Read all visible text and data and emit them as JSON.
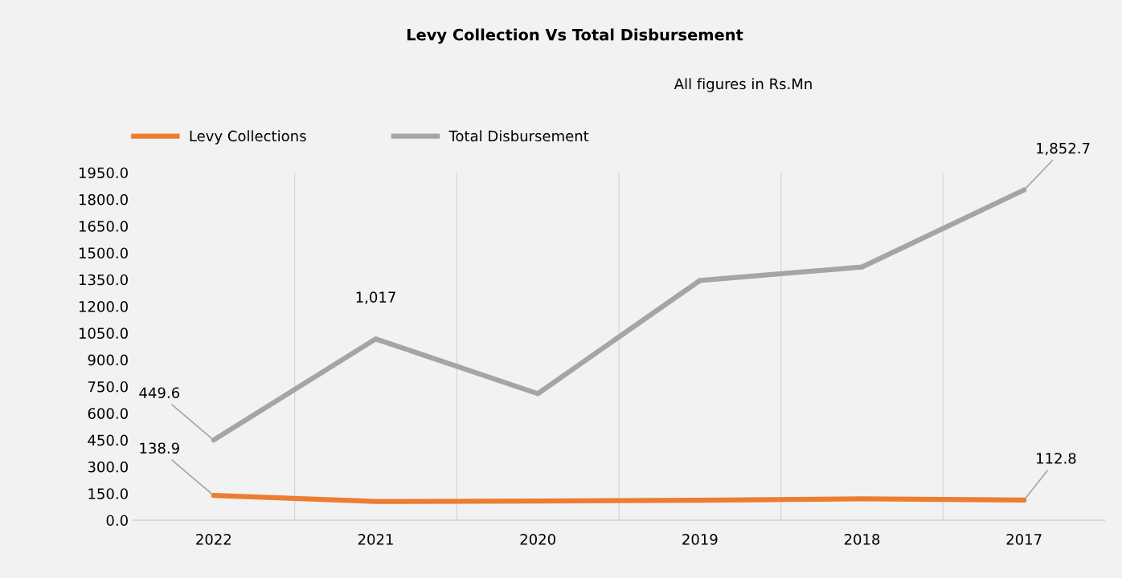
{
  "chart_data": {
    "type": "line",
    "title": "Levy Collection Vs Total Disbursement",
    "subtitle": "All figures in Rs.Mn",
    "categories": [
      "2022",
      "2021",
      "2020",
      "2019",
      "2018",
      "2017"
    ],
    "series": [
      {
        "name": "Levy Collections",
        "color": "#ed7d31",
        "values": [
          138.9,
          105,
          108,
          112,
          120,
          112.8
        ],
        "value_labels": [
          "138.9",
          null,
          null,
          null,
          null,
          "112.8"
        ]
      },
      {
        "name": "Total Disbursement",
        "color": "#a5a5a5",
        "values": [
          449.6,
          1017,
          710,
          1345,
          1420,
          1852.7
        ],
        "value_labels": [
          "449.6",
          "1,017",
          null,
          null,
          null,
          "1,852.7"
        ]
      }
    ],
    "ylim": [
      0,
      1950
    ],
    "yticks": [
      {
        "value": 0,
        "label": "0.0"
      },
      {
        "value": 150,
        "label": "150.0"
      },
      {
        "value": 300,
        "label": "300.0"
      },
      {
        "value": 450,
        "label": "450.0"
      },
      {
        "value": 600,
        "label": "600.0"
      },
      {
        "value": 750,
        "label": "750.0"
      },
      {
        "value": 900,
        "label": "900.0"
      },
      {
        "value": 1050,
        "label": "1050.0"
      },
      {
        "value": 1200,
        "label": "1200.0"
      },
      {
        "value": 1350,
        "label": "1350.0"
      },
      {
        "value": 1500,
        "label": "1500.0"
      },
      {
        "value": 1650,
        "label": "1650.0"
      },
      {
        "value": 1800,
        "label": "1800.0"
      },
      {
        "value": 1950,
        "label": "1950.0"
      }
    ],
    "grid": "x",
    "legend": "top left",
    "marker": "none",
    "line_style": "solid"
  }
}
